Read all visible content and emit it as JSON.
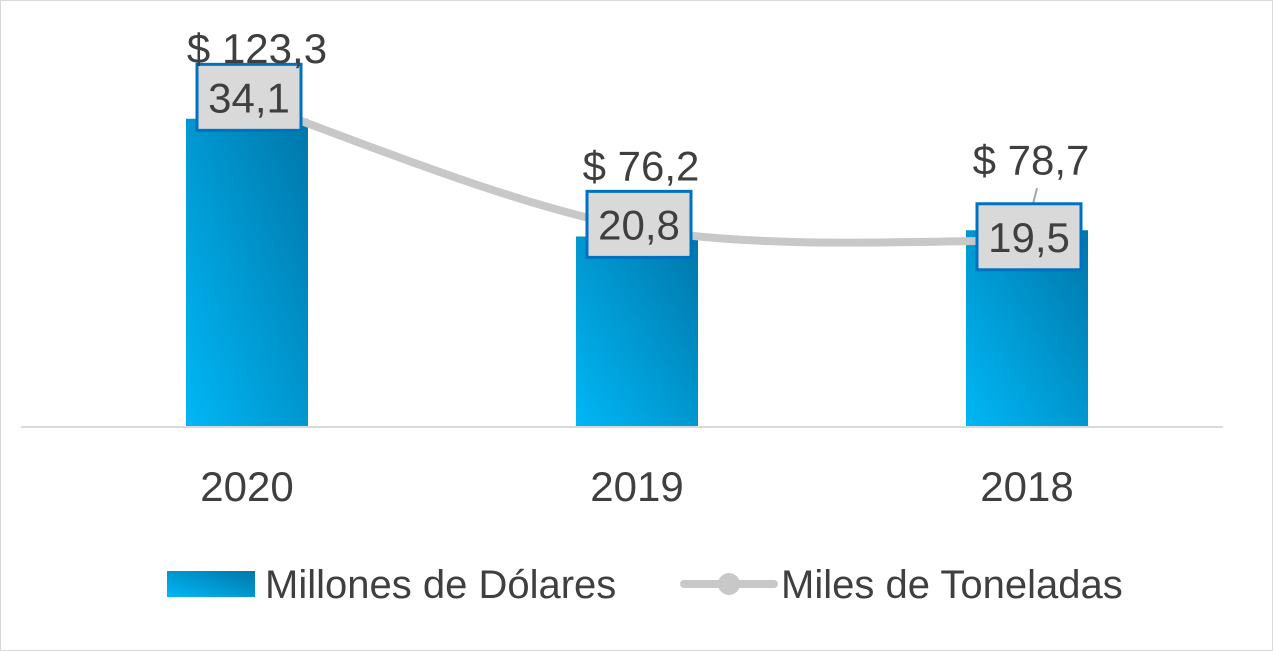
{
  "chart_data": {
    "type": "bar",
    "categories": [
      "2020",
      "2019",
      "2018"
    ],
    "series": [
      {
        "name": "Millones de Dólares",
        "kind": "bar",
        "values": [
          123.3,
          76.2,
          78.7
        ],
        "labels": [
          "$ 123,3",
          "$ 76,2",
          "$ 78,7"
        ],
        "color": "#00a3e0"
      },
      {
        "name": "Miles de Toneladas",
        "kind": "line",
        "values": [
          34.1,
          20.8,
          19.5
        ],
        "labels": [
          "34,1",
          "20,8",
          "19,5"
        ],
        "color": "#c8c8c8"
      }
    ],
    "grid": false,
    "legend_position": "bottom"
  }
}
